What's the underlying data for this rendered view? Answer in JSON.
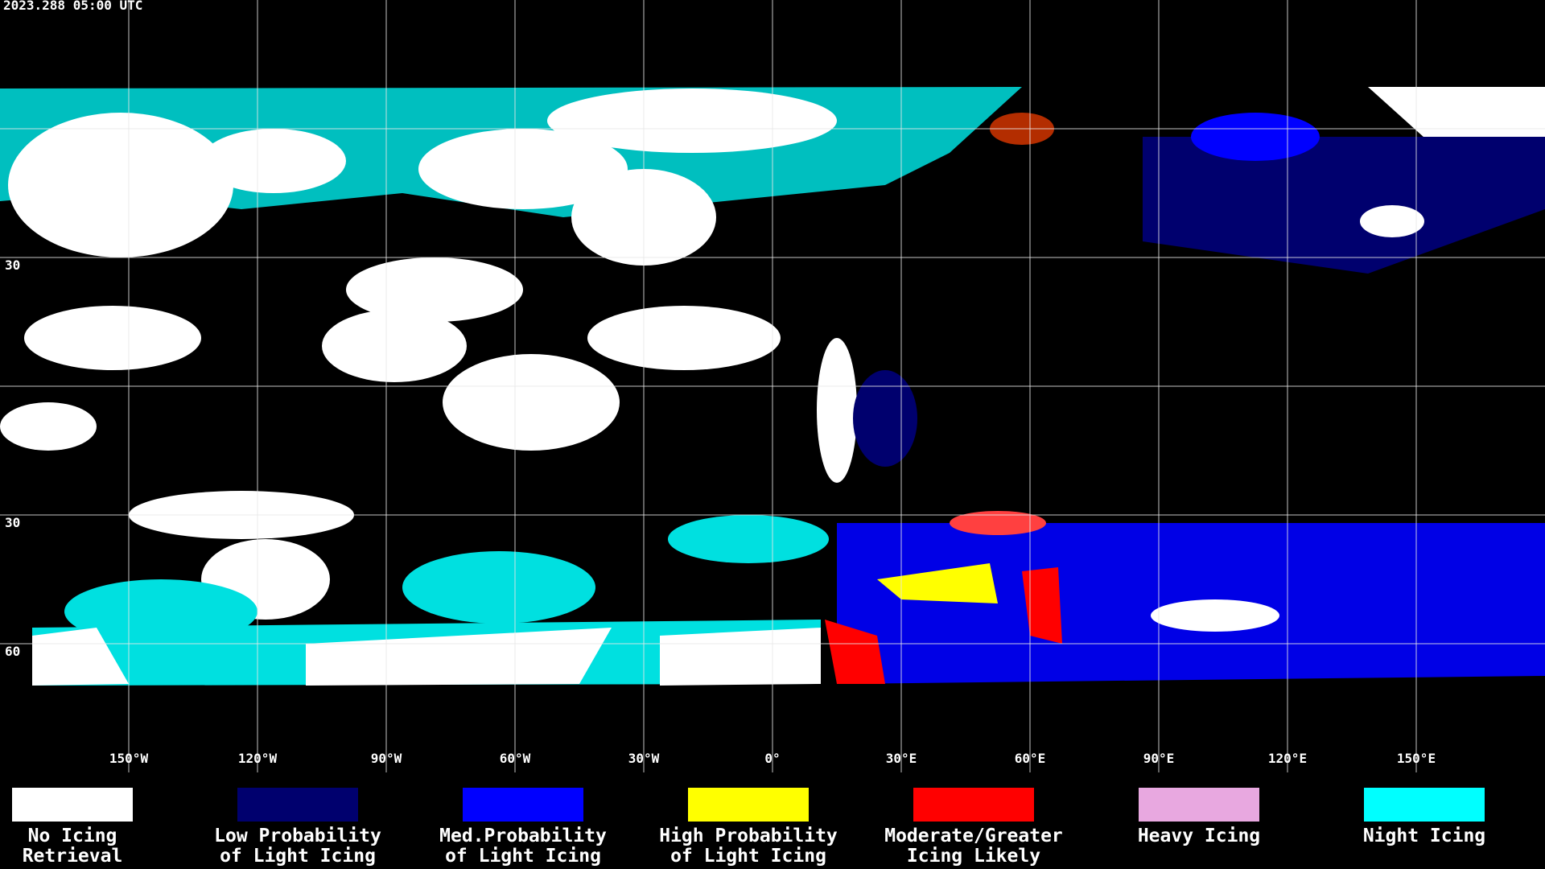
{
  "header": {
    "title": "2023.288 05:00 UTC"
  },
  "map": {
    "lon_ticks": [
      {
        "value": -150,
        "label": "150°W"
      },
      {
        "value": -120,
        "label": "120°W"
      },
      {
        "value": -90,
        "label": "90°W"
      },
      {
        "value": -60,
        "label": "60°W"
      },
      {
        "value": -30,
        "label": "30°W"
      },
      {
        "value": 0,
        "label": "0°"
      },
      {
        "value": 30,
        "label": "30°E"
      },
      {
        "value": 60,
        "label": "60°E"
      },
      {
        "value": 90,
        "label": "90°E"
      },
      {
        "value": 120,
        "label": "120°E"
      },
      {
        "value": 150,
        "label": "150°E"
      }
    ],
    "lat_lines": [
      60,
      30,
      0,
      -30,
      -60
    ],
    "lat_labels": [
      {
        "value": 30,
        "label": "30"
      },
      {
        "value": -30,
        "label": "30"
      },
      {
        "value": -60,
        "label": "60"
      }
    ]
  },
  "legend": {
    "items": [
      {
        "color": "#ffffff",
        "lines": [
          "No Icing",
          "Retrieval"
        ]
      },
      {
        "color": "#00006e",
        "lines": [
          "Low Probability",
          "of Light Icing"
        ]
      },
      {
        "color": "#0000ff",
        "lines": [
          "Med.Probability",
          "of Light Icing"
        ]
      },
      {
        "color": "#ffff00",
        "lines": [
          "High Probability",
          "of Light Icing"
        ]
      },
      {
        "color": "#ff0000",
        "lines": [
          "Moderate/Greater",
          "Icing Likely"
        ]
      },
      {
        "color": "#e8a8e0",
        "lines": [
          "Heavy Icing"
        ]
      },
      {
        "color": "#00ffff",
        "lines": [
          "Night Icing"
        ]
      }
    ]
  }
}
